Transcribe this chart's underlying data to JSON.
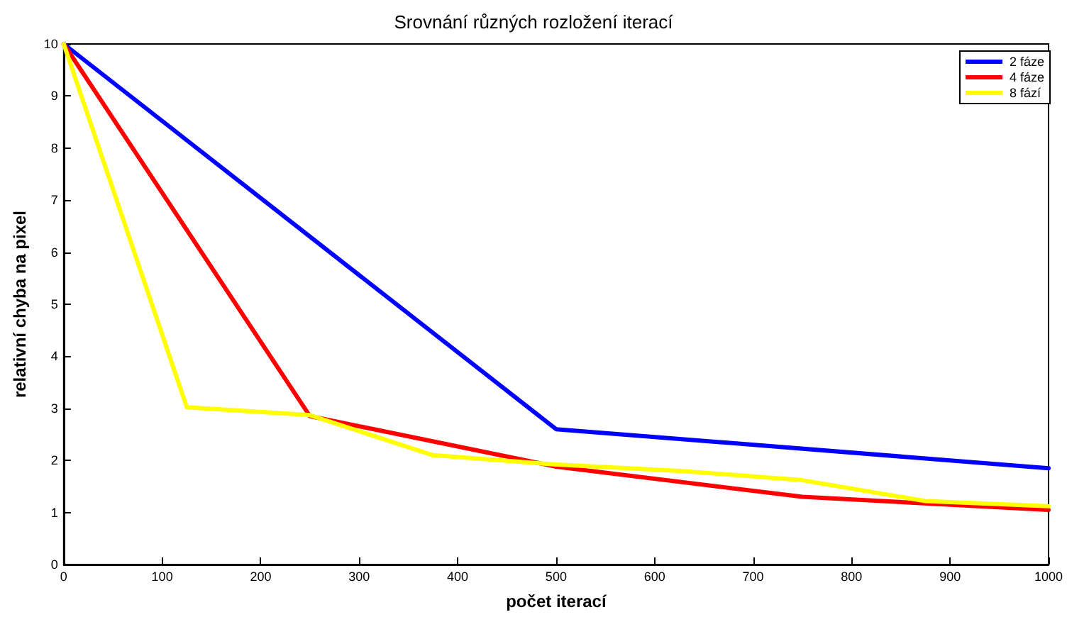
{
  "chart_data": {
    "type": "line",
    "title": "Srovnání různých rozložení iterací",
    "xlabel": "počet iterací",
    "ylabel": "relativní chyba na pixel",
    "series": [
      {
        "name": "2 fáze",
        "color": "#0000ff",
        "x": [
          0,
          500,
          1000
        ],
        "values": [
          10,
          2.6,
          1.85
        ]
      },
      {
        "name": "4 fáze",
        "color": "#ff0000",
        "x": [
          0,
          250,
          500,
          750,
          1000
        ],
        "values": [
          10,
          2.85,
          1.88,
          1.3,
          1.05
        ]
      },
      {
        "name": "8 fází",
        "color": "#ffff00",
        "x": [
          0,
          125,
          250,
          375,
          500,
          625,
          750,
          875,
          1000
        ],
        "values": [
          10,
          3.02,
          2.87,
          2.1,
          1.92,
          1.8,
          1.62,
          1.22,
          1.12
        ]
      }
    ],
    "xlim": [
      0,
      1000
    ],
    "xticks": [
      0,
      100,
      200,
      300,
      400,
      500,
      600,
      700,
      800,
      900,
      1000
    ],
    "ylim": [
      0,
      10
    ],
    "yticks": [
      0,
      1,
      2,
      3,
      4,
      5,
      6,
      7,
      8,
      9,
      10
    ],
    "grid": false,
    "legend": "top right",
    "marker": "none",
    "line_style": "solid"
  }
}
